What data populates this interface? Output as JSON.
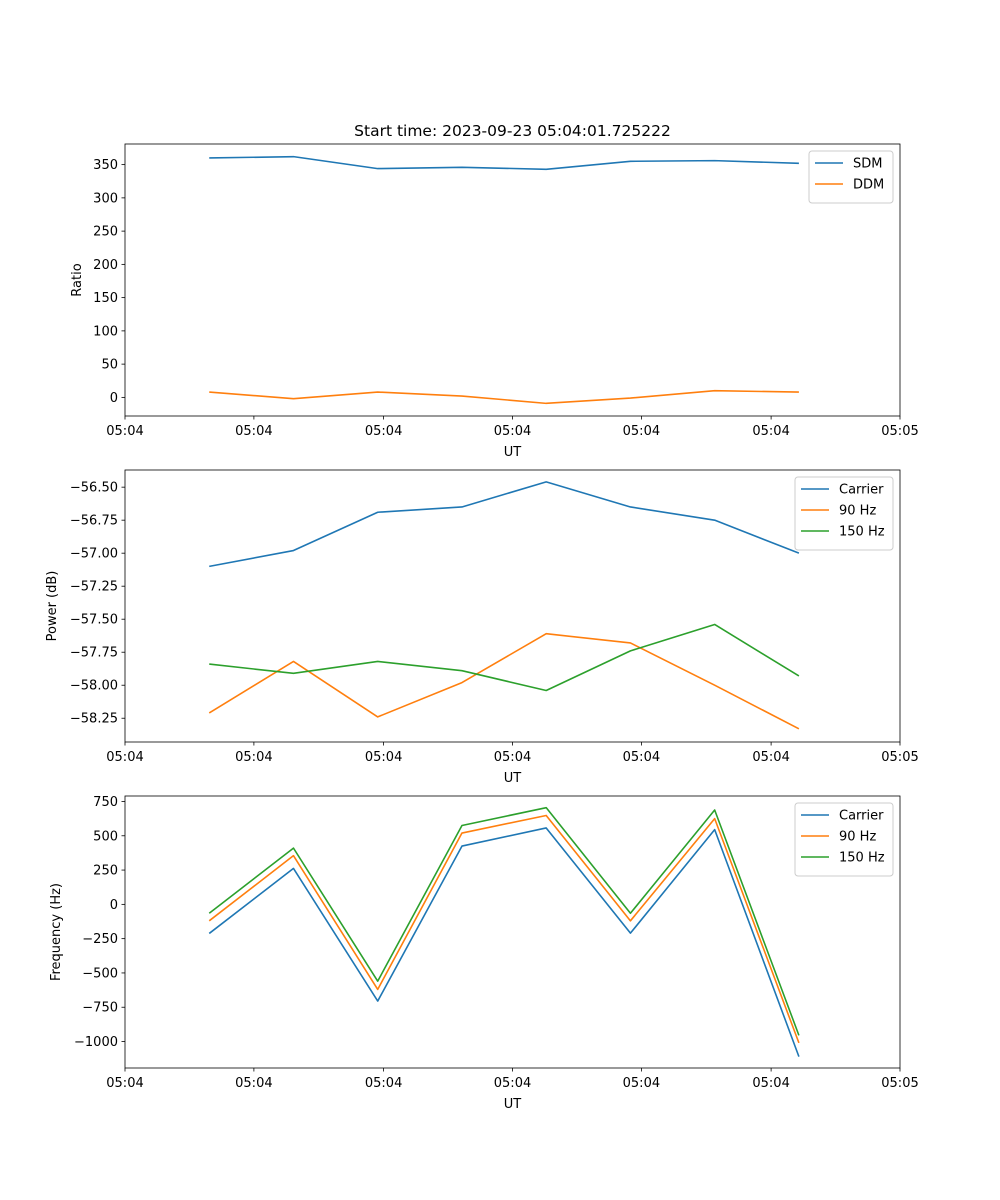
{
  "figure_title": "Start time: 2023-09-23 05:04:01.725222",
  "colors": {
    "blue": "#1f77b4",
    "orange": "#ff7f0e",
    "green": "#2ca02c"
  },
  "chart_data": [
    {
      "type": "line",
      "title": "Start time: 2023-09-23 05:04:01.725222",
      "xlabel": "UT",
      "ylabel": "Ratio",
      "x": [
        1,
        2,
        3,
        4,
        5,
        6,
        7,
        8
      ],
      "xlim": [
        0,
        9.2
      ],
      "x_ticks": [
        0,
        1.53,
        3.07,
        4.6,
        6.13,
        7.67,
        9.2
      ],
      "x_tick_labels": [
        "05:04",
        "05:04",
        "05:04",
        "05:04",
        "05:04",
        "05:04",
        "05:05"
      ],
      "ylim": [
        -28,
        381
      ],
      "y_ticks": [
        0,
        50,
        100,
        150,
        200,
        250,
        300,
        350
      ],
      "y_tick_labels": [
        "0",
        "50",
        "100",
        "150",
        "200",
        "250",
        "300",
        "350"
      ],
      "legend_position": "top-right",
      "series": [
        {
          "name": "SDM",
          "color": "#1f77b4",
          "values": [
            360,
            362,
            344,
            346,
            343,
            355,
            356,
            352
          ]
        },
        {
          "name": "DDM",
          "color": "#ff7f0e",
          "values": [
            8,
            -2,
            8,
            2,
            -9,
            -1,
            10,
            8
          ]
        }
      ]
    },
    {
      "type": "line",
      "title": "",
      "xlabel": "UT",
      "ylabel": "Power (dB)",
      "x": [
        1,
        2,
        3,
        4,
        5,
        6,
        7,
        8
      ],
      "xlim": [
        0,
        9.2
      ],
      "x_ticks": [
        0,
        1.53,
        3.07,
        4.6,
        6.13,
        7.67,
        9.2
      ],
      "x_tick_labels": [
        "05:04",
        "05:04",
        "05:04",
        "05:04",
        "05:04",
        "05:04",
        "05:05"
      ],
      "ylim": [
        -58.43,
        -56.37
      ],
      "y_ticks": [
        -56.5,
        -56.75,
        -57.0,
        -57.25,
        -57.5,
        -57.75,
        -58.0,
        -58.25
      ],
      "y_tick_labels": [
        "−56.50",
        "−56.75",
        "−57.00",
        "−57.25",
        "−57.50",
        "−57.75",
        "−58.00",
        "−58.25"
      ],
      "legend_position": "top-right",
      "series": [
        {
          "name": "Carrier",
          "color": "#1f77b4",
          "values": [
            -57.1,
            -56.98,
            -56.69,
            -56.65,
            -56.46,
            -56.65,
            -56.75,
            -57.0
          ]
        },
        {
          "name": "90 Hz",
          "color": "#ff7f0e",
          "values": [
            -58.21,
            -57.82,
            -58.24,
            -57.98,
            -57.61,
            -57.68,
            -58.0,
            -58.33
          ]
        },
        {
          "name": "150 Hz",
          "color": "#2ca02c",
          "values": [
            -57.84,
            -57.91,
            -57.82,
            -57.89,
            -58.04,
            -57.74,
            -57.54,
            -57.93
          ]
        }
      ]
    },
    {
      "type": "line",
      "title": "",
      "xlabel": "UT",
      "ylabel": "Frequency (Hz)",
      "x": [
        1,
        2,
        3,
        4,
        5,
        6,
        7,
        8
      ],
      "xlim": [
        0,
        9.2
      ],
      "x_ticks": [
        0,
        1.53,
        3.07,
        4.6,
        6.13,
        7.67,
        9.2
      ],
      "x_tick_labels": [
        "05:04",
        "05:04",
        "05:04",
        "05:04",
        "05:04",
        "05:04",
        "05:05"
      ],
      "ylim": [
        -1193,
        790
      ],
      "y_ticks": [
        750,
        500,
        250,
        0,
        -250,
        -500,
        -750,
        -1000
      ],
      "y_tick_labels": [
        "750",
        "500",
        "250",
        "0",
        "−250",
        "−500",
        "−750",
        "−1000"
      ],
      "legend_position": "top-right",
      "series": [
        {
          "name": "Carrier",
          "color": "#1f77b4",
          "values": [
            -212,
            262,
            -705,
            425,
            557,
            -210,
            545,
            -1110
          ]
        },
        {
          "name": "90 Hz",
          "color": "#ff7f0e",
          "values": [
            -120,
            355,
            -620,
            520,
            648,
            -120,
            625,
            -1010
          ]
        },
        {
          "name": "150 Hz",
          "color": "#2ca02c",
          "values": [
            -65,
            410,
            -560,
            575,
            705,
            -65,
            688,
            -955
          ]
        }
      ]
    }
  ]
}
